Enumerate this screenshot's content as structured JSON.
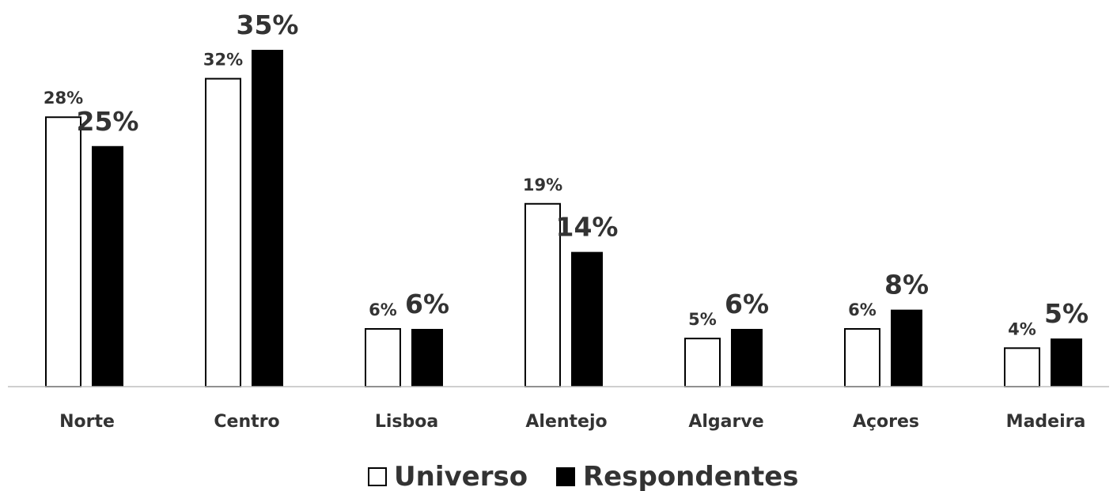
{
  "chart_data": {
    "type": "bar",
    "categories": [
      "Norte",
      "Centro",
      "Lisboa",
      "Alentejo",
      "Algarve",
      "Açores",
      "Madeira"
    ],
    "series": [
      {
        "name": "Universo",
        "values": [
          28,
          32,
          6,
          19,
          5,
          6,
          4
        ],
        "labels": [
          "28%",
          "32%",
          "6%",
          "19%",
          "5%",
          "6%",
          "4%"
        ],
        "fill": "#ffffff",
        "stroke": "#000000"
      },
      {
        "name": "Respondentes",
        "values": [
          25,
          35,
          6,
          14,
          6,
          8,
          5
        ],
        "labels": [
          "25%",
          "35%",
          "6%",
          "14%",
          "6%",
          "8%",
          "5%"
        ],
        "fill": "#000000",
        "stroke": "#000000"
      }
    ],
    "ylim": [
      0,
      35
    ],
    "grid": false,
    "legend_position": "bottom",
    "axis_color": "#bfbfbf",
    "label_color": "#333333"
  }
}
